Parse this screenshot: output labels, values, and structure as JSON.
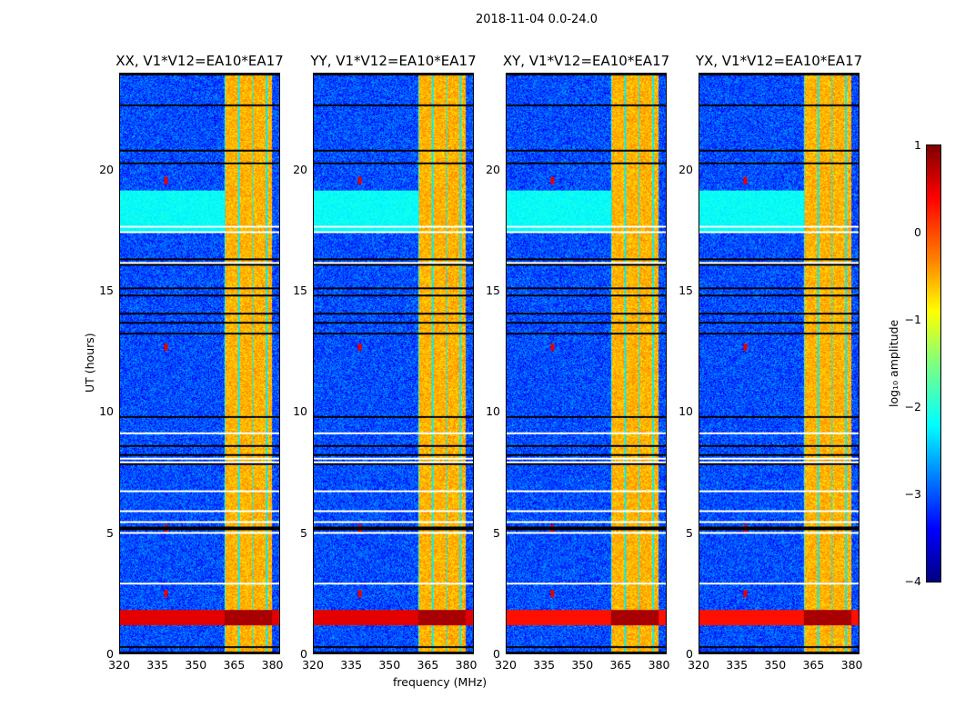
{
  "chart_data": {
    "type": "heatmap",
    "title": "2018-11-04 0.0-24.0",
    "xlabel": "frequency (MHz)",
    "ylabel": "UT (hours)",
    "xlim": [
      320,
      383
    ],
    "ylim": [
      0,
      24
    ],
    "xticks": [
      "320",
      "335",
      "350",
      "365",
      "380"
    ],
    "yticks": [
      "0",
      "5",
      "10",
      "15",
      "20"
    ],
    "panels": [
      {
        "title": "XX, V1*V12=EA10*EA17"
      },
      {
        "title": "YY, V1*V12=EA10*EA17"
      },
      {
        "title": "XY, V1*V12=EA10*EA17"
      },
      {
        "title": "YX, V1*V12=EA10*EA17"
      }
    ],
    "features": {
      "background_log_amp": -3,
      "rfi_band_mhz": [
        361,
        380
      ],
      "rfi_log_amp": -0.5,
      "strong_interference_ut": [
        1.2,
        1.8
      ],
      "elevated_ut": [
        17.5,
        19.2
      ]
    },
    "colorbar": {
      "label": "log₁₀ amplitude",
      "range": [
        -4,
        1
      ],
      "ticks": [
        "1",
        "0",
        "−1",
        "−2",
        "−3",
        "−4"
      ],
      "colormap": "jet"
    }
  }
}
